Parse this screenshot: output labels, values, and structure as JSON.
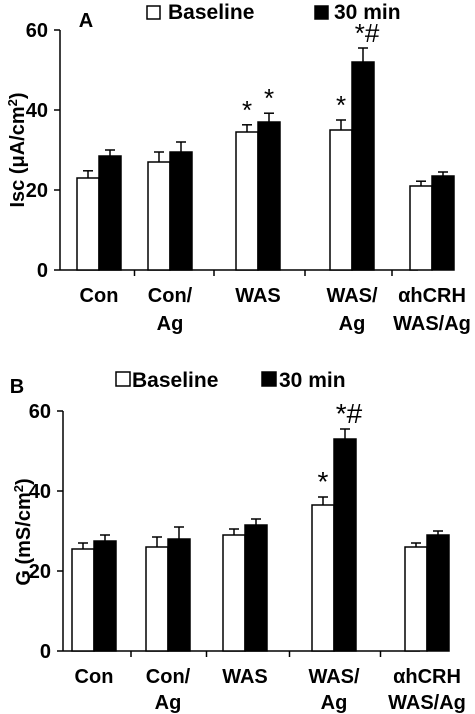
{
  "chart_data": [
    {
      "type": "bar",
      "panel_label": "A",
      "ylabel_main": "Isc (μA/cm",
      "ylabel_sup": "2",
      "ylabel_end": ")",
      "ylim": [
        0,
        60
      ],
      "yticks": [
        "0",
        "20",
        "40",
        "60"
      ],
      "categories": [
        [
          "Con"
        ],
        [
          "Con/",
          "Ag"
        ],
        [
          "WAS"
        ],
        [
          "WAS/",
          "Ag"
        ],
        [
          "αhCRH",
          "WAS/Ag"
        ]
      ],
      "series": [
        {
          "name": "Baseline",
          "values": [
            23,
            27,
            34.5,
            35,
            21
          ],
          "errors": [
            1.8,
            2.5,
            1.8,
            2.5,
            1.2
          ],
          "annotations": [
            "",
            "",
            "*",
            "*",
            ""
          ]
        },
        {
          "name": "30 min",
          "values": [
            28.5,
            29.5,
            37,
            52,
            23.5
          ],
          "errors": [
            1.5,
            2.5,
            2.2,
            3.5,
            1
          ],
          "annotations": [
            "",
            "",
            "*",
            "*#",
            ""
          ]
        }
      ],
      "legend_position": "top"
    },
    {
      "type": "bar",
      "panel_label": "B",
      "ylabel_main": "G (mS/cm",
      "ylabel_sup": "2",
      "ylabel_end": ")",
      "ylim": [
        0,
        60
      ],
      "yticks": [
        "0",
        "20",
        "40",
        "60"
      ],
      "categories": [
        [
          "Con"
        ],
        [
          "Con/",
          "Ag"
        ],
        [
          "WAS"
        ],
        [
          "WAS/",
          "Ag"
        ],
        [
          "αhCRH",
          "WAS/Ag"
        ]
      ],
      "series": [
        {
          "name": "Baseline",
          "values": [
            25.5,
            26,
            29,
            36.5,
            26
          ],
          "errors": [
            1.5,
            2.5,
            1.5,
            2,
            1
          ],
          "annotations": [
            "",
            "",
            "",
            "*",
            ""
          ]
        },
        {
          "name": "30 min",
          "values": [
            27.5,
            28,
            31.5,
            53,
            29
          ],
          "errors": [
            1.5,
            3,
            1.5,
            2.5,
            1
          ],
          "annotations": [
            "",
            "",
            "",
            "*#",
            ""
          ]
        }
      ],
      "legend_position": "top"
    }
  ]
}
